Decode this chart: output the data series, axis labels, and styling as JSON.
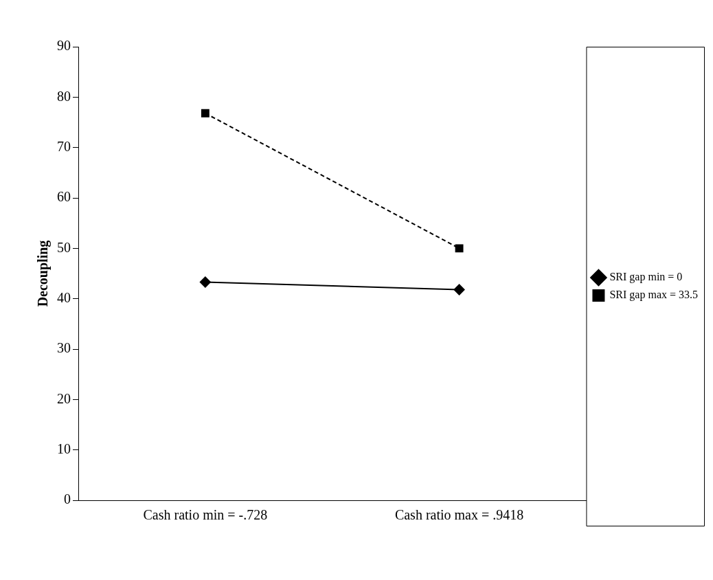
{
  "chart_data": {
    "type": "line",
    "ylabel": "Decoupling",
    "categories": [
      "Cash ratio min = -.728",
      "Cash ratio max = .9418"
    ],
    "series": [
      {
        "name": "SRI gap min = 0",
        "color": "#000000",
        "values": [
          43.3,
          41.8
        ],
        "marker": "diamond",
        "line_style": "solid"
      },
      {
        "name": "SRI gap max = 33.5",
        "color": "#000000",
        "values": [
          76.8,
          50
        ],
        "marker": "square",
        "line_style": "dashed"
      }
    ],
    "ylim": [
      0,
      90
    ],
    "yticks": [
      0,
      10,
      20,
      30,
      40,
      50,
      60,
      70,
      80,
      90
    ],
    "grid": false,
    "legend": "right"
  }
}
